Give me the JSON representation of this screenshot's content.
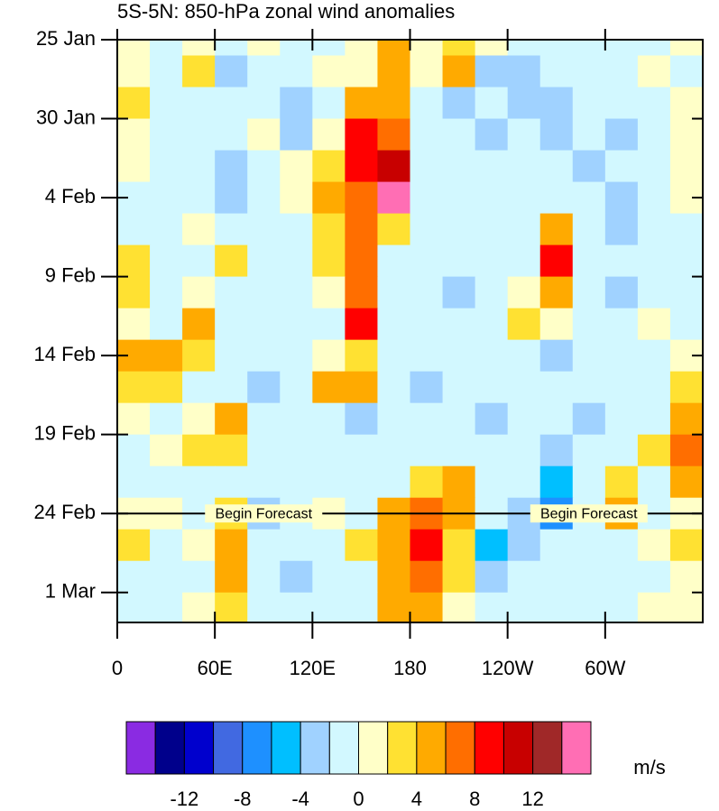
{
  "chart_data": {
    "type": "hovmoller",
    "title": "5S-5N: 850-hPa zonal wind anomalies",
    "units": "m/s",
    "xlim": [
      0,
      360
    ],
    "xticks": [
      0,
      {
        "value": 60,
        "label": "60E"
      },
      {
        "value": 120,
        "label": "120E"
      },
      180,
      {
        "value": 240,
        "label": "120W"
      },
      {
        "value": 300,
        "label": "60W"
      }
    ],
    "ylim": [
      0,
      36.9
    ],
    "yticks": [
      {
        "value": 0,
        "label": "25 Jan"
      },
      {
        "value": 5,
        "label": "30 Jan"
      },
      {
        "value": 10,
        "label": "4 Feb"
      },
      {
        "value": 15,
        "label": "9 Feb"
      },
      {
        "value": 20,
        "label": "14 Feb"
      },
      {
        "value": 25,
        "label": "19 Feb"
      },
      {
        "value": 30,
        "label": "24 Feb"
      },
      {
        "value": 35,
        "label": "1 Mar"
      }
    ],
    "forecast_day": 30,
    "annotations": [
      {
        "text": "Begin Forecast",
        "x": 90
      },
      {
        "text": "Begin Forecast",
        "x": 290
      }
    ],
    "levels": [
      -14,
      -12,
      -10,
      -8,
      -6,
      -4,
      -2,
      0,
      2,
      4,
      6,
      8,
      10,
      12,
      14
    ],
    "colors": [
      "#8a2be2",
      "#00008b",
      "#0000cd",
      "#4169e1",
      "#1e90ff",
      "#00bfff",
      "#a0d2ff",
      "#d2f8ff",
      "#ffffc8",
      "#ffe132",
      "#ffaa00",
      "#ff6e00",
      "#ff0000",
      "#c80000",
      "#a02828",
      "#ff6eb4"
    ],
    "colorbar_ticks": [
      -12,
      -8,
      -4,
      0,
      4,
      8,
      12
    ],
    "lon": [
      10,
      30,
      50,
      70,
      90,
      110,
      130,
      150,
      170,
      190,
      210,
      230,
      250,
      270,
      290,
      310,
      330,
      350
    ],
    "days": [
      0,
      2,
      4,
      6,
      8,
      10,
      12,
      14,
      16,
      18,
      20,
      22,
      24,
      26,
      28,
      30,
      32,
      34,
      36
    ],
    "values": [
      [
        1,
        -1,
        1,
        -2,
        1,
        -1,
        -1,
        1,
        4,
        1,
        3,
        1,
        -1,
        -1,
        -1,
        -1,
        -1,
        1
      ],
      [
        1,
        -1,
        2,
        -4,
        -1,
        -1,
        1,
        1,
        5,
        1,
        4,
        -3,
        -3,
        -2,
        -1,
        -1,
        1,
        -1
      ],
      [
        2,
        -1,
        -1,
        -1,
        -2,
        -3,
        -1,
        4,
        5,
        -1,
        -3,
        -2,
        -3,
        -4,
        -1,
        -1,
        -1,
        1
      ],
      [
        1,
        -2,
        -1,
        -1,
        1,
        -3,
        1,
        8,
        7,
        -1,
        -2,
        -3,
        -2,
        -4,
        -2,
        -3,
        -1,
        1
      ],
      [
        1,
        -1,
        -2,
        -3,
        -1,
        1,
        3,
        9,
        10,
        -1,
        -2,
        -1,
        -2,
        -2,
        -3,
        -1,
        -1,
        1
      ],
      [
        -1,
        -1,
        -2,
        -4,
        -1,
        1,
        4,
        6,
        14,
        -1,
        -1,
        -1,
        -1,
        -2,
        -1,
        -3,
        -1,
        1
      ],
      [
        -1,
        -1,
        1,
        -1,
        -1,
        -2,
        3,
        7,
        3,
        -2,
        -1,
        -2,
        -1,
        5,
        -1,
        -3,
        -1,
        -1
      ],
      [
        2,
        -1,
        -1,
        3,
        -2,
        -1,
        3,
        6,
        -1,
        -2,
        -2,
        -2,
        -1,
        8,
        -1,
        -2,
        -1,
        -1
      ],
      [
        3,
        -2,
        1,
        -1,
        -1,
        -2,
        1,
        6,
        -2,
        -2,
        -3,
        -1,
        1,
        4,
        -1,
        -3,
        -1,
        -1
      ],
      [
        1,
        -1,
        4,
        -1,
        -2,
        -1,
        -1,
        8,
        -2,
        -1,
        -1,
        -2,
        3,
        1,
        -1,
        -2,
        1,
        -1
      ],
      [
        4,
        5,
        3,
        -1,
        -1,
        -2,
        1,
        3,
        -1,
        -1,
        -1,
        -1,
        -1,
        -3,
        -1,
        -2,
        -1,
        1
      ],
      [
        3,
        2,
        -1,
        -1,
        -3,
        -2,
        4,
        4,
        -1,
        -3,
        -2,
        -1,
        -1,
        -1,
        -2,
        -2,
        -1,
        3
      ],
      [
        1,
        -1,
        1,
        5,
        -1,
        -2,
        -1,
        -3,
        -1,
        -2,
        -2,
        -3,
        -1,
        -1,
        -3,
        -1,
        -1,
        4
      ],
      [
        -1,
        1,
        2,
        3,
        -1,
        -1,
        -1,
        -2,
        -1,
        -1,
        -2,
        -1,
        -2,
        -3,
        -1,
        -1,
        3,
        6
      ],
      [
        -1,
        -1,
        -1,
        -1,
        -1,
        -2,
        -1,
        -2,
        -1,
        3,
        4,
        -2,
        -2,
        -5,
        -1,
        3,
        -1,
        4
      ],
      [
        1,
        1,
        -1,
        3,
        -3,
        -1,
        1,
        -1,
        4,
        6,
        5,
        -2,
        -4,
        -8,
        -2,
        4,
        -1,
        1
      ],
      [
        3,
        -1,
        1,
        4,
        -2,
        -2,
        -1,
        2,
        5,
        9,
        3,
        -5,
        -4,
        -2,
        -1,
        -1,
        1,
        3
      ],
      [
        -2,
        -1,
        -1,
        5,
        -2,
        -3,
        -2,
        -1,
        5,
        6,
        2,
        -3,
        -2,
        -2,
        -1,
        -1,
        -1,
        1
      ],
      [
        -1,
        -1,
        1,
        3,
        -1,
        -2,
        -1,
        -1,
        4,
        4,
        1,
        -2,
        -1,
        -2,
        -1,
        -1,
        1,
        1
      ]
    ]
  }
}
